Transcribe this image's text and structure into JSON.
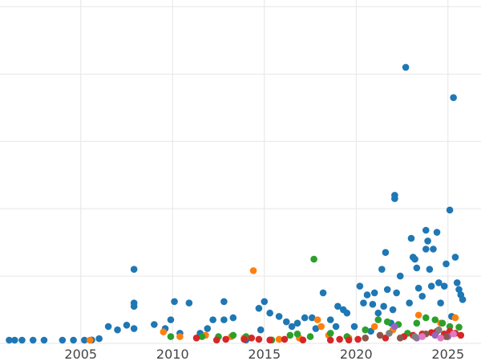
{
  "chart_data": {
    "type": "scatter",
    "title": "",
    "xlabel": "",
    "ylabel": "",
    "xlim": [
      2000.6,
      2026.8
    ],
    "ylim": [
      0,
      510
    ],
    "x_ticks": [
      2005,
      2010,
      2015,
      2020,
      2025
    ],
    "x_tick_labels": [
      "2005",
      "2010",
      "2015",
      "2020",
      "2025"
    ],
    "y_gridlines": [
      0,
      100,
      200,
      300,
      400,
      500
    ],
    "y_tick_labels_visible": false,
    "grid": true,
    "legend": "none",
    "series": [
      {
        "color": "#1f77b4",
        "points": [
          [
            2001.1,
            2
          ],
          [
            2001.4,
            2
          ],
          [
            2001.8,
            3
          ],
          [
            2002.4,
            2
          ],
          [
            2003.0,
            2
          ],
          [
            2004.0,
            4
          ],
          [
            2004.6,
            3
          ],
          [
            2005.2,
            4
          ],
          [
            2005.6,
            5
          ],
          [
            2006.0,
            7
          ],
          [
            2006.5,
            25
          ],
          [
            2007.0,
            20
          ],
          [
            2007.5,
            27
          ],
          [
            2007.9,
            60
          ],
          [
            2007.9,
            55
          ],
          [
            2007.9,
            110
          ],
          [
            2007.9,
            22
          ],
          [
            2009.0,
            28
          ],
          [
            2009.6,
            22
          ],
          [
            2009.9,
            35
          ],
          [
            2010.1,
            62
          ],
          [
            2010.4,
            15
          ],
          [
            2010.9,
            60
          ],
          [
            2011.5,
            15
          ],
          [
            2011.9,
            22
          ],
          [
            2012.2,
            35
          ],
          [
            2012.8,
            62
          ],
          [
            2012.8,
            35
          ],
          [
            2013.3,
            38
          ],
          [
            2014.0,
            5
          ],
          [
            2014.7,
            52
          ],
          [
            2014.8,
            20
          ],
          [
            2015.0,
            62
          ],
          [
            2015.3,
            45
          ],
          [
            2015.8,
            40
          ],
          [
            2016.2,
            32
          ],
          [
            2016.5,
            25
          ],
          [
            2016.8,
            30
          ],
          [
            2017.2,
            38
          ],
          [
            2017.6,
            38
          ],
          [
            2017.8,
            22
          ],
          [
            2018.2,
            75
          ],
          [
            2018.6,
            35
          ],
          [
            2018.9,
            25
          ],
          [
            2019.0,
            55
          ],
          [
            2019.3,
            50
          ],
          [
            2019.5,
            45
          ],
          [
            2019.9,
            25
          ],
          [
            2020.2,
            85
          ],
          [
            2020.4,
            60
          ],
          [
            2020.6,
            72
          ],
          [
            2020.8,
            18
          ],
          [
            2020.9,
            58
          ],
          [
            2021.0,
            75
          ],
          [
            2021.2,
            45
          ],
          [
            2021.4,
            110
          ],
          [
            2021.5,
            55
          ],
          [
            2021.6,
            135
          ],
          [
            2021.7,
            80
          ],
          [
            2021.9,
            30
          ],
          [
            2022.0,
            50
          ],
          [
            2022.1,
            220
          ],
          [
            2022.1,
            215
          ],
          [
            2022.2,
            75
          ],
          [
            2022.4,
            100
          ],
          [
            2022.7,
            410
          ],
          [
            2022.9,
            60
          ],
          [
            2023.0,
            156
          ],
          [
            2023.1,
            128
          ],
          [
            2023.2,
            125
          ],
          [
            2023.3,
            112
          ],
          [
            2023.4,
            82
          ],
          [
            2023.6,
            70
          ],
          [
            2023.8,
            140
          ],
          [
            2023.8,
            168
          ],
          [
            2023.9,
            152
          ],
          [
            2024.0,
            110
          ],
          [
            2024.1,
            85
          ],
          [
            2024.2,
            140
          ],
          [
            2024.4,
            165
          ],
          [
            2024.5,
            90
          ],
          [
            2024.6,
            60
          ],
          [
            2024.8,
            85
          ],
          [
            2024.9,
            118
          ],
          [
            2025.1,
            198
          ],
          [
            2025.3,
            365
          ],
          [
            2025.4,
            128
          ],
          [
            2025.5,
            90
          ],
          [
            2025.6,
            80
          ],
          [
            2025.7,
            72
          ],
          [
            2025.8,
            65
          ],
          [
            2025.2,
            40
          ]
        ]
      },
      {
        "color": "#ff7f0e",
        "points": [
          [
            2005.5,
            2
          ],
          [
            2009.5,
            17
          ],
          [
            2010.4,
            10
          ],
          [
            2011.8,
            12
          ],
          [
            2013.2,
            10
          ],
          [
            2013.9,
            8
          ],
          [
            2014.4,
            108
          ],
          [
            2015.8,
            6
          ],
          [
            2016.9,
            8
          ],
          [
            2017.9,
            35
          ],
          [
            2018.1,
            25
          ],
          [
            2018.5,
            12
          ],
          [
            2019.6,
            8
          ],
          [
            2021.0,
            25
          ],
          [
            2022.0,
            20
          ],
          [
            2023.4,
            42
          ],
          [
            2024.6,
            30
          ],
          [
            2025.4,
            38
          ]
        ]
      },
      {
        "color": "#2ca02c",
        "points": [
          [
            2009.9,
            10
          ],
          [
            2011.6,
            10
          ],
          [
            2012.5,
            10
          ],
          [
            2013.3,
            12
          ],
          [
            2014.0,
            10
          ],
          [
            2015.4,
            5
          ],
          [
            2016.4,
            12
          ],
          [
            2016.8,
            14
          ],
          [
            2017.5,
            10
          ],
          [
            2017.7,
            125
          ],
          [
            2018.6,
            15
          ],
          [
            2019.5,
            10
          ],
          [
            2020.5,
            20
          ],
          [
            2021.2,
            35
          ],
          [
            2021.7,
            32
          ],
          [
            2022.3,
            28
          ],
          [
            2022.8,
            15
          ],
          [
            2023.3,
            30
          ],
          [
            2023.8,
            38
          ],
          [
            2024.3,
            35
          ],
          [
            2024.7,
            30
          ],
          [
            2025.1,
            25
          ],
          [
            2025.6,
            24
          ]
        ]
      },
      {
        "color": "#d62728",
        "points": [
          [
            2011.3,
            8
          ],
          [
            2012.4,
            5
          ],
          [
            2012.9,
            6
          ],
          [
            2013.9,
            6
          ],
          [
            2014.3,
            8
          ],
          [
            2014.7,
            6
          ],
          [
            2015.3,
            5
          ],
          [
            2016.1,
            6
          ],
          [
            2017.1,
            5
          ],
          [
            2018.6,
            4
          ],
          [
            2019.1,
            6
          ],
          [
            2019.6,
            5
          ],
          [
            2020.1,
            6
          ],
          [
            2021.6,
            8
          ],
          [
            2022.6,
            10
          ],
          [
            2023.1,
            12
          ],
          [
            2023.6,
            14
          ],
          [
            2024.1,
            16
          ],
          [
            2024.4,
            18
          ],
          [
            2024.8,
            14
          ],
          [
            2025.1,
            18
          ],
          [
            2025.4,
            15
          ],
          [
            2025.7,
            12
          ]
        ]
      },
      {
        "color": "#9467bd",
        "points": [
          [
            2022.1,
            25
          ],
          [
            2023.3,
            8
          ],
          [
            2024.3,
            12
          ],
          [
            2025.0,
            10
          ]
        ]
      },
      {
        "color": "#8c564b",
        "points": [
          [
            2020.5,
            8
          ],
          [
            2021.3,
            12
          ],
          [
            2022.4,
            8
          ],
          [
            2023.8,
            14
          ],
          [
            2024.9,
            10
          ]
        ]
      },
      {
        "color": "#e377c2",
        "points": [
          [
            2023.6,
            10
          ],
          [
            2024.6,
            8
          ],
          [
            2025.3,
            14
          ]
        ]
      },
      {
        "color": "#7f7f7f",
        "points": [
          [
            2021.8,
            15
          ],
          [
            2023.2,
            10
          ],
          [
            2024.5,
            20
          ]
        ]
      }
    ]
  }
}
